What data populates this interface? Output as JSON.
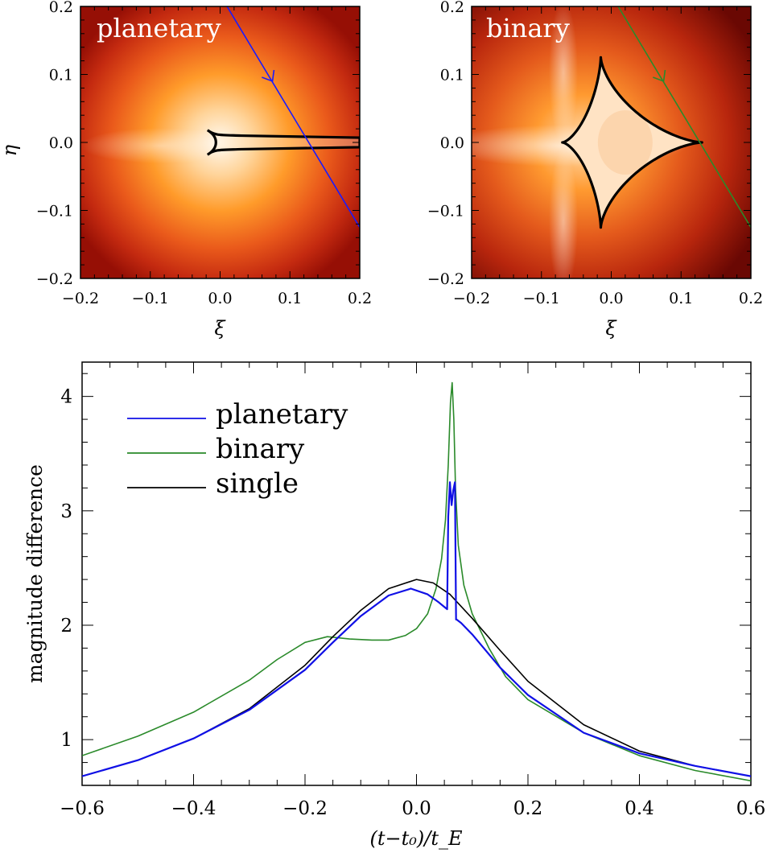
{
  "chart_data": [
    {
      "type": "heatmap",
      "panel_label": "planetary",
      "xlabel": "ξ",
      "ylabel": "η",
      "xlim": [
        -0.2,
        0.2
      ],
      "ylim": [
        -0.2,
        0.2
      ],
      "x_ticks": [
        "−0.2",
        "−0.1",
        "0.0",
        "0.1",
        "0.2"
      ],
      "y_ticks": [
        "−0.2",
        "−0.1",
        "0.0",
        "0.1",
        "0.2"
      ],
      "colormap": [
        "#fffaf2",
        "#ffc27a",
        "#ff9420",
        "#e8561a",
        "#c0280f",
        "#8e0e04"
      ],
      "caustic": {
        "type": "planetary",
        "color": "#000000",
        "x_range": [
          -0.018,
          0.2
        ],
        "y_halfwidth_near": 0.018,
        "y_halfwidth_far": 0.007
      },
      "trajectory": {
        "color": "#1a1aff",
        "points": [
          [
            0.007,
            0.205
          ],
          [
            0.2,
            -0.125
          ]
        ],
        "arrow_at": [
          0.075,
          0.09
        ]
      }
    },
    {
      "type": "heatmap",
      "panel_label": "binary",
      "xlabel": "ξ",
      "ylabel": "",
      "xlim": [
        -0.2,
        0.2
      ],
      "ylim": [
        -0.2,
        0.2
      ],
      "x_ticks": [
        "−0.2",
        "−0.1",
        "0.0",
        "0.1",
        "0.2"
      ],
      "y_ticks": [
        "−0.2",
        "−0.1",
        "0.0",
        "0.1",
        "0.2"
      ],
      "colormap": [
        "#fffaf2",
        "#ffc27a",
        "#ff9420",
        "#e8561a",
        "#c0280f",
        "#8e0e04"
      ],
      "caustic": {
        "type": "astroid",
        "color": "#000000",
        "cusps": [
          [
            0.13,
            0.0
          ],
          [
            -0.015,
            0.125
          ],
          [
            -0.07,
            0.0
          ],
          [
            -0.015,
            -0.125
          ]
        ]
      },
      "trajectory": {
        "color": "#2a8a2a",
        "points": [
          [
            0.007,
            0.205
          ],
          [
            0.2,
            -0.125
          ]
        ],
        "arrow_at": [
          0.075,
          0.09
        ]
      }
    },
    {
      "type": "line",
      "xlabel": "(t−t₀)/t_E",
      "ylabel": "magnitude difference",
      "xlim": [
        -0.6,
        0.6
      ],
      "ylim": [
        0.6,
        4.3
      ],
      "x_ticks": [
        "−0.6",
        "−0.4",
        "−0.2",
        "0.0",
        "0.2",
        "0.4",
        "0.6"
      ],
      "y_ticks": [
        "1",
        "2",
        "3",
        "4"
      ],
      "x_tick_values": [
        -0.6,
        -0.4,
        -0.2,
        0.0,
        0.2,
        0.4,
        0.6
      ],
      "y_tick_values": [
        1,
        2,
        3,
        4
      ],
      "legend_position": "top-left",
      "series": [
        {
          "name": "planetary",
          "color": "#1010e6",
          "x": [
            -0.6,
            -0.5,
            -0.4,
            -0.3,
            -0.2,
            -0.15,
            -0.1,
            -0.05,
            -0.01,
            0.02,
            0.04,
            0.05,
            0.055,
            0.057,
            0.06,
            0.063,
            0.066,
            0.069,
            0.071,
            0.072,
            0.08,
            0.1,
            0.15,
            0.2,
            0.3,
            0.4,
            0.5,
            0.6
          ],
          "y": [
            0.68,
            0.82,
            1.01,
            1.26,
            1.61,
            1.85,
            2.08,
            2.26,
            2.32,
            2.27,
            2.2,
            2.16,
            2.14,
            2.95,
            3.25,
            3.05,
            3.18,
            3.25,
            2.05,
            2.05,
            2.02,
            1.92,
            1.63,
            1.39,
            1.06,
            0.88,
            0.77,
            0.68
          ]
        },
        {
          "name": "binary",
          "color": "#2a8a2a",
          "x": [
            -0.6,
            -0.5,
            -0.4,
            -0.3,
            -0.25,
            -0.2,
            -0.16,
            -0.12,
            -0.08,
            -0.05,
            -0.02,
            0.0,
            0.02,
            0.035,
            0.045,
            0.052,
            0.057,
            0.061,
            0.064,
            0.067,
            0.07,
            0.075,
            0.085,
            0.1,
            0.13,
            0.16,
            0.2,
            0.3,
            0.4,
            0.5,
            0.6
          ],
          "y": [
            0.86,
            1.03,
            1.24,
            1.52,
            1.7,
            1.85,
            1.9,
            1.88,
            1.87,
            1.87,
            1.91,
            1.97,
            2.1,
            2.32,
            2.58,
            2.92,
            3.4,
            3.95,
            4.12,
            3.8,
            3.2,
            2.7,
            2.35,
            2.1,
            1.8,
            1.55,
            1.35,
            1.06,
            0.86,
            0.73,
            0.64
          ]
        },
        {
          "name": "single",
          "color": "#000000",
          "x": [
            -0.6,
            -0.5,
            -0.4,
            -0.3,
            -0.2,
            -0.15,
            -0.1,
            -0.05,
            0.0,
            0.03,
            0.06,
            0.1,
            0.15,
            0.2,
            0.3,
            0.4,
            0.5,
            0.6
          ],
          "y": [
            0.68,
            0.82,
            1.01,
            1.27,
            1.65,
            1.9,
            2.13,
            2.32,
            2.4,
            2.37,
            2.27,
            2.06,
            1.78,
            1.51,
            1.13,
            0.9,
            0.77,
            0.68
          ]
        }
      ]
    }
  ]
}
